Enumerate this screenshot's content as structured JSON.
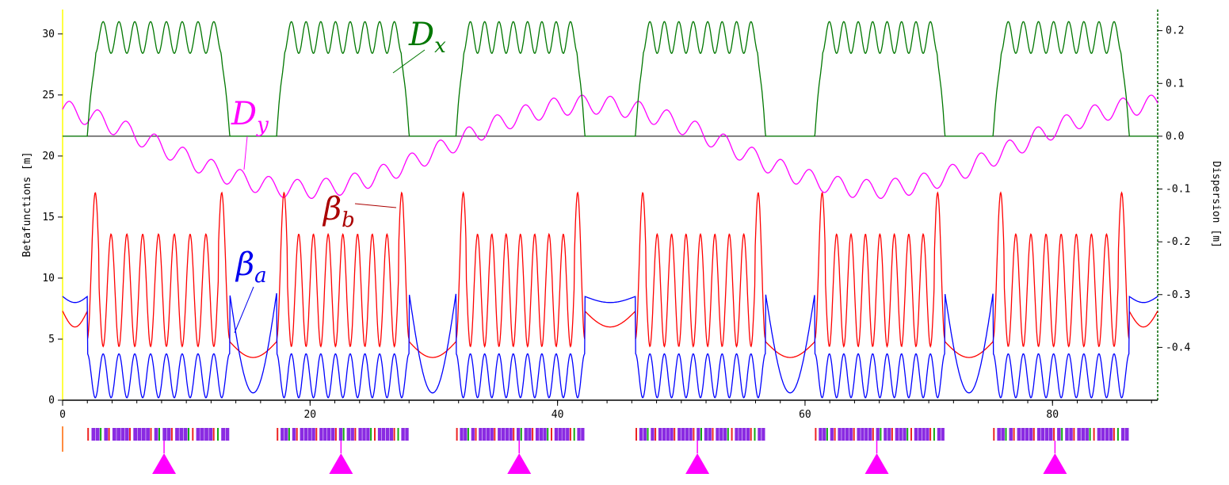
{
  "chart_data": {
    "type": "line",
    "title": "",
    "xlabel": "",
    "ylabel_left": "Betafunctions [m]",
    "ylabel_right": "Dispersion [m]",
    "xlim": [
      0,
      88.5
    ],
    "ylim_left": [
      0,
      32
    ],
    "ylim_right": [
      -0.5,
      0.24
    ],
    "x_ticks": [
      "0",
      "20",
      "40",
      "60",
      "80"
    ],
    "y_left_ticks": [
      "0",
      "5",
      "10",
      "15",
      "20",
      "25",
      "30"
    ],
    "y_right_ticks": [
      "0.2",
      "0.1",
      "0.0",
      "-0.1",
      "-0.2",
      "-0.3",
      "-0.4"
    ],
    "grid": false,
    "series": [
      {
        "name": "β_a",
        "axis": "left",
        "color": "#0000ff"
      },
      {
        "name": "β_b",
        "axis": "left",
        "color": "#ff0000"
      },
      {
        "name": "D_x",
        "axis": "right",
        "color": "#007700"
      },
      {
        "name": "D_y",
        "axis": "right",
        "color": "#ff00ff"
      }
    ],
    "annotations": [
      {
        "base": "D",
        "sub": "x",
        "color": "#007700"
      },
      {
        "base": "D",
        "sub": "y",
        "color": "#ff00ff"
      },
      {
        "base": "β",
        "sub": "b",
        "color": "#aa0000"
      },
      {
        "base": "β",
        "sub": "a",
        "color": "#0000ee"
      }
    ],
    "sections": [
      {
        "x_start": 2.0,
        "x_end": 13.5,
        "marker": 8.2
      },
      {
        "x_start": 17.3,
        "x_end": 28.0,
        "marker": 22.5
      },
      {
        "x_start": 31.8,
        "x_end": 42.2,
        "marker": 36.9
      },
      {
        "x_start": 46.3,
        "x_end": 56.8,
        "marker": 51.3
      },
      {
        "x_start": 60.8,
        "x_end": 71.3,
        "marker": 65.8
      },
      {
        "x_start": 75.2,
        "x_end": 86.2,
        "marker": 80.2
      }
    ],
    "colors": {
      "axis": "#000000",
      "left_axis_line": "#ffff00",
      "right_axis_line": "#006600",
      "magnet_purple": "#8a2be2",
      "magnet_red": "#ee2222",
      "magnet_green": "#11aa11",
      "marker": "#ff00ff"
    }
  }
}
